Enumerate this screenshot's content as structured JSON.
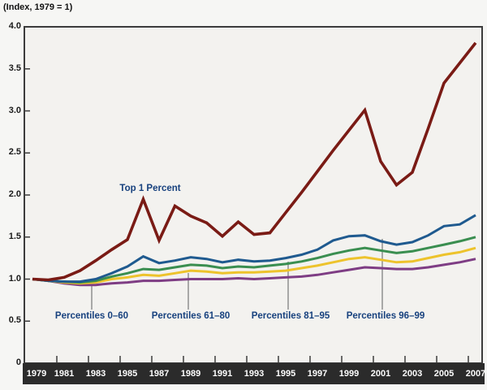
{
  "colors": {
    "top_1_percent": "#7a1b15",
    "percentiles_96_99": "#1f5a8f",
    "percentiles_81_95": "#3a8e50",
    "percentiles_61_80": "#edc32c",
    "percentiles_0_60": "#7e3d84",
    "annotation_text": "#17417e",
    "axis_band": "#2b2b2b",
    "axis_band_text": "#ffffff",
    "frame": "#3c3c3c",
    "plot_bg": "#f3f2ef",
    "page_bg": "#f6f6f4",
    "leader_line": "#8f8f8f"
  },
  "chart_data": {
    "type": "line",
    "title": "(Index, 1979 = 1)",
    "xlabel": "",
    "ylabel": "",
    "grid": false,
    "legend_position": "inline annotations with leader lines",
    "ylim": [
      0,
      4.0
    ],
    "yticks": [
      0,
      0.5,
      1.0,
      1.5,
      2.0,
      2.5,
      3.0,
      3.5,
      4.0
    ],
    "xtick_years": [
      1979,
      1981,
      1983,
      1985,
      1987,
      1989,
      1991,
      1993,
      1995,
      1997,
      1999,
      2001,
      2003,
      2005,
      2007
    ],
    "x": [
      1979,
      1980,
      1981,
      1982,
      1983,
      1984,
      1985,
      1986,
      1987,
      1988,
      1989,
      1990,
      1991,
      1992,
      1993,
      1994,
      1995,
      1996,
      1997,
      1998,
      1999,
      2000,
      2001,
      2002,
      2003,
      2004,
      2005,
      2006,
      2007
    ],
    "series": [
      {
        "name": "Top 1 Percent",
        "color": "#7a1b15",
        "values": [
          1.0,
          0.99,
          1.02,
          1.1,
          1.22,
          1.35,
          1.47,
          1.95,
          1.46,
          1.87,
          1.75,
          1.67,
          1.51,
          1.68,
          1.53,
          1.55,
          1.79,
          2.03,
          2.28,
          2.53,
          2.77,
          3.01,
          2.4,
          2.12,
          2.27,
          2.79,
          3.33,
          3.57,
          3.81
        ]
      },
      {
        "name": "Percentiles 96–99",
        "color": "#1f5a8f",
        "values": [
          1.0,
          0.98,
          0.97,
          0.97,
          1.0,
          1.07,
          1.15,
          1.27,
          1.19,
          1.22,
          1.26,
          1.24,
          1.2,
          1.23,
          1.21,
          1.22,
          1.25,
          1.29,
          1.35,
          1.46,
          1.51,
          1.52,
          1.45,
          1.41,
          1.44,
          1.52,
          1.63,
          1.65,
          1.76
        ]
      },
      {
        "name": "Percentiles 81–95",
        "color": "#3a8e50",
        "values": [
          1.0,
          0.98,
          0.97,
          0.96,
          0.98,
          1.03,
          1.07,
          1.12,
          1.11,
          1.14,
          1.17,
          1.16,
          1.13,
          1.15,
          1.14,
          1.16,
          1.18,
          1.21,
          1.25,
          1.3,
          1.34,
          1.37,
          1.34,
          1.31,
          1.33,
          1.37,
          1.41,
          1.45,
          1.5
        ]
      },
      {
        "name": "Percentiles 61–80",
        "color": "#edc32c",
        "values": [
          1.0,
          0.98,
          0.96,
          0.95,
          0.96,
          1.0,
          1.02,
          1.05,
          1.04,
          1.07,
          1.1,
          1.09,
          1.07,
          1.08,
          1.08,
          1.09,
          1.1,
          1.13,
          1.16,
          1.2,
          1.24,
          1.26,
          1.23,
          1.2,
          1.21,
          1.25,
          1.29,
          1.32,
          1.37
        ]
      },
      {
        "name": "Percentiles 0–60",
        "color": "#7e3d84",
        "values": [
          1.0,
          0.98,
          0.95,
          0.93,
          0.93,
          0.95,
          0.96,
          0.98,
          0.98,
          0.99,
          1.0,
          1.0,
          1.0,
          1.01,
          1.0,
          1.01,
          1.02,
          1.03,
          1.05,
          1.08,
          1.11,
          1.14,
          1.13,
          1.12,
          1.12,
          1.14,
          1.17,
          1.2,
          1.24
        ]
      }
    ]
  }
}
